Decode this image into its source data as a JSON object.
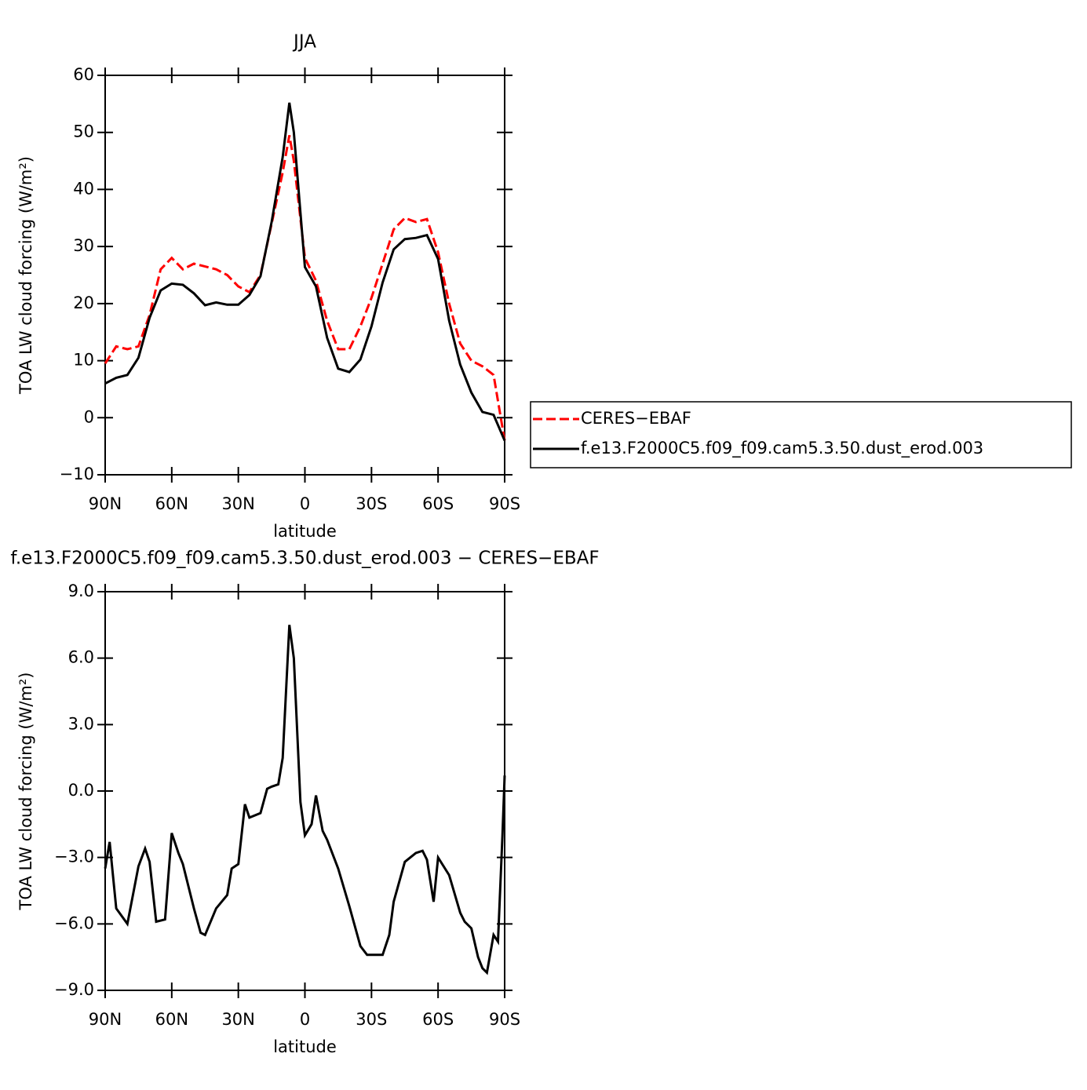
{
  "chart_data": [
    {
      "type": "line",
      "title": "JJA",
      "xlabel": "latitude",
      "ylabel": "TOA LW cloud forcing (W/m²)",
      "x": [
        90,
        85,
        80,
        75,
        70,
        65,
        60,
        55,
        50,
        45,
        40,
        35,
        30,
        25,
        20,
        15,
        10,
        7,
        5,
        0,
        -5,
        -10,
        -15,
        -20,
        -25,
        -30,
        -35,
        -40,
        -45,
        -50,
        -55,
        -60,
        -65,
        -70,
        -75,
        -80,
        -85,
        -90
      ],
      "series": [
        {
          "name": "CERES−EBAF",
          "color": "#ff0000",
          "dash": true,
          "values": [
            9.5,
            12.5,
            12,
            12.5,
            18,
            26,
            28,
            26,
            27,
            26.5,
            26,
            25,
            23,
            22,
            25,
            34,
            43,
            49.5,
            45,
            28,
            24,
            17,
            12,
            12,
            16,
            21,
            27,
            33,
            35,
            34.3,
            34.8,
            29,
            20,
            13,
            10,
            9,
            7.5,
            -4
          ]
        },
        {
          "name": "f.e13.F2000C5.f09_f09.cam5.3.50.dust_erod.003",
          "color": "#000000",
          "dash": false,
          "values": [
            6,
            7,
            7.5,
            10.5,
            17.5,
            22.3,
            23.5,
            23.3,
            21.8,
            19.7,
            20.2,
            19.8,
            19.8,
            21.5,
            24.8,
            34.3,
            45.7,
            55.2,
            50,
            26.4,
            23,
            14,
            8.6,
            8,
            10.2,
            16,
            23.7,
            29.5,
            31.3,
            31.5,
            32,
            27.8,
            17,
            9.3,
            4.4,
            1,
            0.5,
            -4
          ]
        }
      ],
      "xlim": [
        90,
        -90
      ],
      "xticks": [
        {
          "value": 90,
          "label": "90N"
        },
        {
          "value": 60,
          "label": "60N"
        },
        {
          "value": 30,
          "label": "30N"
        },
        0,
        {
          "value": -30,
          "label": "30S"
        },
        {
          "value": -60,
          "label": "60S"
        },
        {
          "value": -90,
          "label": "90S"
        }
      ],
      "ylim": [
        -10,
        60
      ],
      "yticks": [
        {
          "value": -10,
          "label": "−10"
        },
        0,
        10,
        20,
        30,
        40,
        50,
        60
      ],
      "legend": "right"
    },
    {
      "type": "line",
      "title": "f.e13.F2000C5.f09_f09.cam5.3.50.dust_erod.003 − CERES−EBAF",
      "xlabel": "latitude",
      "ylabel": "TOA LW cloud forcing (W/m²)",
      "x": [
        90,
        88,
        85,
        80,
        75,
        72,
        70,
        67,
        63,
        60,
        57,
        55,
        50,
        47,
        45,
        40,
        35,
        33,
        30,
        27,
        25,
        20,
        17,
        15,
        12,
        10,
        7,
        5,
        2,
        0,
        -3,
        -5,
        -8,
        -10,
        -15,
        -20,
        -25,
        -28,
        -30,
        -35,
        -38,
        -40,
        -45,
        -50,
        -53,
        -55,
        -58,
        -60,
        -65,
        -70,
        -72,
        -75,
        -78,
        -80,
        -82,
        -85,
        -87,
        -89,
        -90
      ],
      "series": [
        {
          "color": "#000000",
          "dash": false,
          "values": [
            -3.5,
            -2.3,
            -5.3,
            -6,
            -3.4,
            -2.6,
            -3.2,
            -5.9,
            -5.8,
            -1.9,
            -2.8,
            -3.3,
            -5.3,
            -6.4,
            -6.5,
            -5.3,
            -4.7,
            -3.5,
            -3.3,
            -0.6,
            -1.2,
            -1,
            0.1,
            0.2,
            0.3,
            1.5,
            7.5,
            6,
            -0.5,
            -2,
            -1.5,
            -0.2,
            -1.8,
            -2.2,
            -3.5,
            -5.2,
            -7,
            -7.4,
            -7.4,
            -7.4,
            -6.5,
            -5,
            -3.2,
            -2.8,
            -2.7,
            -3.1,
            -5,
            -3,
            -3.8,
            -5.5,
            -5.9,
            -6.2,
            -7.5,
            -8,
            -8.2,
            -6.5,
            -6.8,
            -2,
            0.7
          ]
        }
      ],
      "xlim": [
        90,
        -90
      ],
      "xticks": [
        {
          "value": 90,
          "label": "90N"
        },
        {
          "value": 60,
          "label": "60N"
        },
        {
          "value": 30,
          "label": "30N"
        },
        0,
        {
          "value": -30,
          "label": "30S"
        },
        {
          "value": -60,
          "label": "60S"
        },
        {
          "value": -90,
          "label": "90S"
        }
      ],
      "ylim": [
        -9,
        9
      ],
      "yticks": [
        {
          "value": -9,
          "label": "−9.0"
        },
        {
          "value": -6,
          "label": "−6.0"
        },
        {
          "value": -3,
          "label": "−3.0"
        },
        {
          "value": 0,
          "label": "0.0"
        },
        {
          "value": 3,
          "label": "3.0"
        },
        {
          "value": 6,
          "label": "6.0"
        },
        {
          "value": 9,
          "label": "9.0"
        }
      ]
    }
  ]
}
